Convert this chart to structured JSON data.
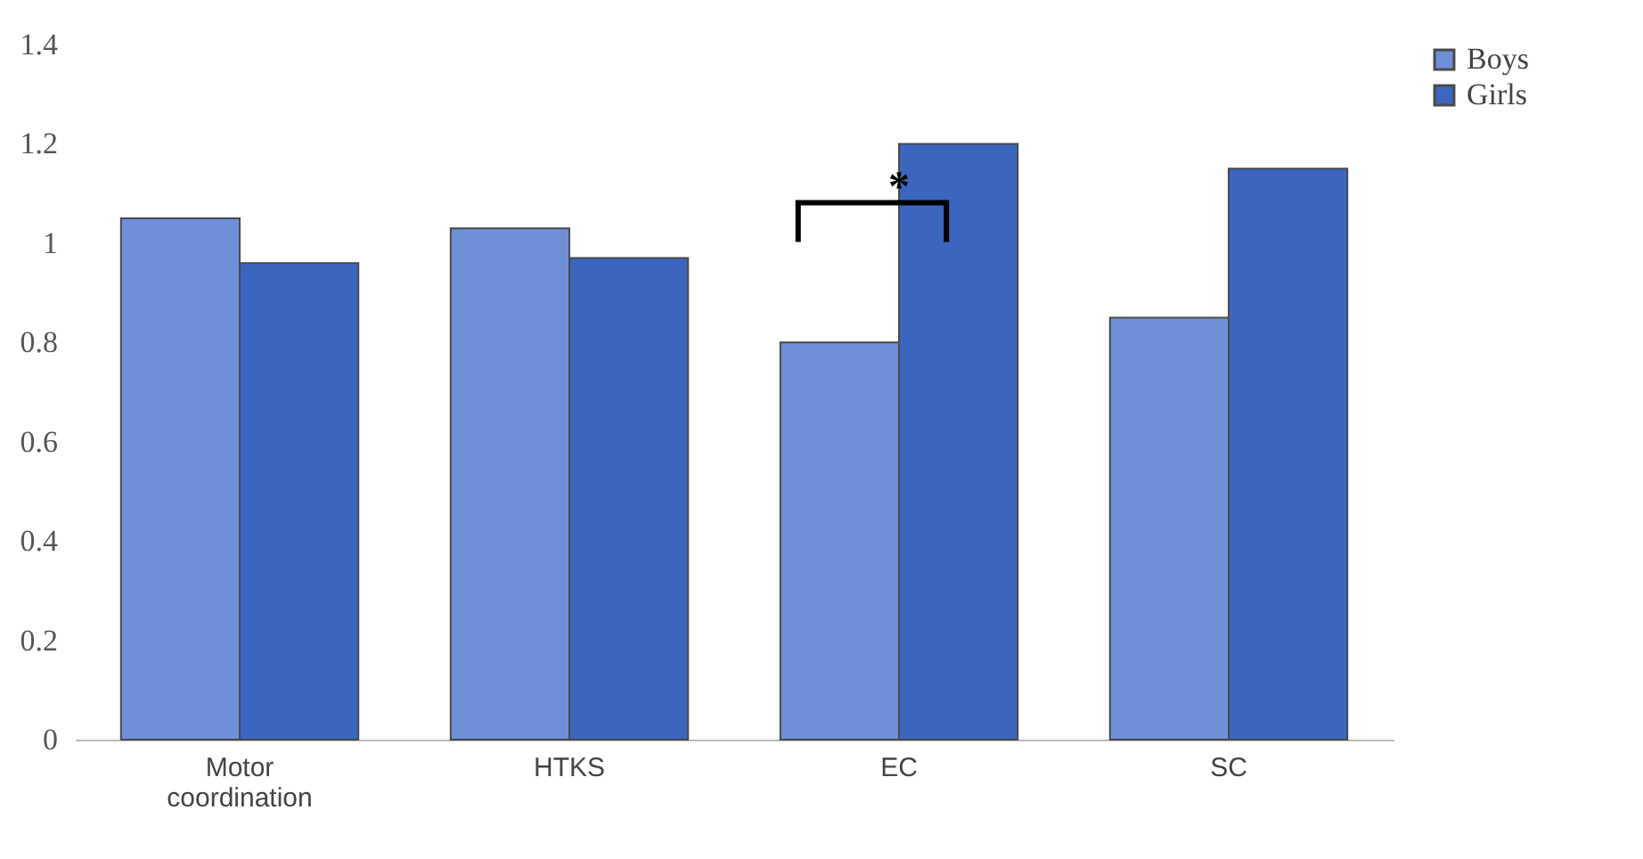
{
  "chart_data": {
    "type": "bar",
    "categories": [
      "Motor coordination",
      "HTKS",
      "EC",
      "SC"
    ],
    "series": [
      {
        "name": "Boys",
        "color": "#6f8fd8",
        "values": [
          1.05,
          1.03,
          0.8,
          0.85
        ]
      },
      {
        "name": "Girls",
        "color": "#3b65bf",
        "values": [
          0.96,
          0.97,
          1.2,
          1.15
        ]
      }
    ],
    "ylim": [
      0,
      1.4
    ],
    "yticks": [
      0,
      0.2,
      0.4,
      0.6,
      0.8,
      1,
      1.2,
      1.4
    ],
    "grid": false,
    "legend": "right",
    "annotations": [
      {
        "text": "*",
        "x": "EC",
        "y": 1.06
      }
    ]
  }
}
